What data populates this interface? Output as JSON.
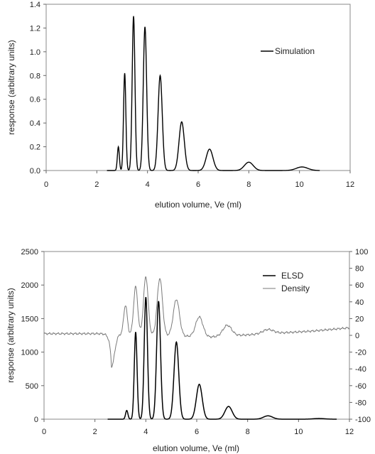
{
  "chart_data": [
    {
      "type": "line",
      "title": "",
      "xlabel": "elution volume, Ve (ml)",
      "ylabel": "response (arbitrary units)",
      "xlim": [
        0,
        12
      ],
      "ylim": [
        0,
        1.4
      ],
      "xticks": [
        0,
        2,
        4,
        6,
        8,
        10,
        12
      ],
      "yticks": [
        0.0,
        0.2,
        0.4,
        0.6,
        0.8,
        1.0,
        1.2,
        1.4
      ],
      "ytick_labels": [
        "0.0",
        "0.2",
        "0.4",
        "0.6",
        "0.8",
        "1.0",
        "1.2",
        "1.4"
      ],
      "grid": false,
      "legend_position": "top-right",
      "series": [
        {
          "name": "Simulation",
          "color": "#000000",
          "peaks": [
            {
              "x": 2.85,
              "y": 0.2
            },
            {
              "x": 3.1,
              "y": 0.82
            },
            {
              "x": 3.45,
              "y": 1.3
            },
            {
              "x": 3.9,
              "y": 1.21
            },
            {
              "x": 4.5,
              "y": 0.8
            },
            {
              "x": 5.35,
              "y": 0.41
            },
            {
              "x": 6.45,
              "y": 0.18
            },
            {
              "x": 8.0,
              "y": 0.07
            },
            {
              "x": 10.1,
              "y": 0.03
            }
          ]
        }
      ]
    },
    {
      "type": "line",
      "title": "",
      "xlabel": "elution volume, Ve (ml)",
      "ylabel": "response (arbitrary units)",
      "xlim": [
        0,
        12
      ],
      "ylim": [
        0,
        2500
      ],
      "y2lim": [
        -100,
        100
      ],
      "xticks": [
        0,
        2,
        4,
        6,
        8,
        10,
        12
      ],
      "yticks": [
        0,
        500,
        1000,
        1500,
        2000,
        2500
      ],
      "y2ticks": [
        100,
        80,
        60,
        40,
        20,
        0,
        -20,
        -40,
        -60,
        -80,
        -100
      ],
      "grid": false,
      "legend_position": "top-right",
      "series": [
        {
          "name": "ELSD",
          "color": "#000000",
          "axis": "left",
          "peaks": [
            {
              "x": 3.25,
              "y": 130
            },
            {
              "x": 3.6,
              "y": 1300
            },
            {
              "x": 4.0,
              "y": 1820
            },
            {
              "x": 4.5,
              "y": 1760
            },
            {
              "x": 5.2,
              "y": 1150
            },
            {
              "x": 6.1,
              "y": 520
            },
            {
              "x": 7.25,
              "y": 190
            },
            {
              "x": 8.8,
              "y": 50
            },
            {
              "x": 10.8,
              "y": 10
            }
          ]
        },
        {
          "name": "Density",
          "color": "#808080",
          "axis": "right",
          "baseline": [
            [
              0,
              2
            ],
            [
              2.4,
              2
            ],
            [
              6.5,
              -2
            ],
            [
              10.5,
              5
            ],
            [
              12,
              9
            ]
          ],
          "dip": {
            "x": 2.65,
            "y": -37
          },
          "peaks": [
            {
              "x": 3.2,
              "y": 36
            },
            {
              "x": 3.6,
              "y": 58
            },
            {
              "x": 4.0,
              "y": 70
            },
            {
              "x": 4.55,
              "y": 68
            },
            {
              "x": 5.2,
              "y": 43
            },
            {
              "x": 6.1,
              "y": 22
            },
            {
              "x": 7.2,
              "y": 12
            },
            {
              "x": 8.8,
              "y": 7
            }
          ]
        }
      ]
    }
  ]
}
